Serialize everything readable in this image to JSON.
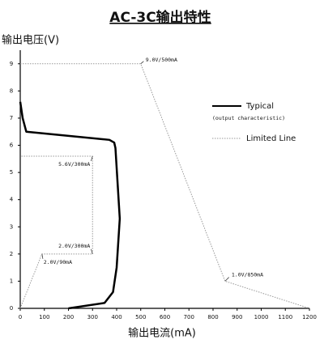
{
  "chart_data": {
    "type": "line",
    "title": "AC-3C输出特性",
    "xlabel": "输出电流(mA)",
    "ylabel": "输出电压(V)",
    "xlim": [
      0,
      1200
    ],
    "ylim": [
      0,
      9.5
    ],
    "xticks": [
      0,
      100,
      200,
      300,
      400,
      500,
      600,
      700,
      800,
      900,
      1000,
      1100,
      1200
    ],
    "yticks": [
      0,
      1,
      2,
      3,
      4,
      5,
      6,
      7,
      8,
      9
    ],
    "legend": "right",
    "series": [
      {
        "name": "Typical",
        "subtitle": "(output characteristic)",
        "color": "#000000",
        "style": "solid",
        "x": [
          0,
          10,
          25,
          370,
          390,
          395,
          413,
          400,
          385,
          350,
          200
        ],
        "values": [
          7.6,
          7.0,
          6.5,
          6.2,
          6.1,
          5.9,
          3.3,
          1.5,
          0.6,
          0.2,
          0
        ]
      },
      {
        "name": "Limited Line",
        "color": "#999999",
        "style": "dotted",
        "x": [
          0,
          90,
          300,
          300,
          0,
          null,
          0,
          500,
          850,
          1200
        ],
        "values": [
          0,
          2,
          2,
          5.6,
          5.6,
          null,
          9,
          9,
          1,
          0
        ]
      }
    ],
    "annotations": [
      {
        "text": "9.0V/500mA",
        "x": 500,
        "y": 9
      },
      {
        "text": "5.6V/300mA",
        "x": 300,
        "y": 5.6
      },
      {
        "text": "2.0V/300mA",
        "x": 300,
        "y": 2
      },
      {
        "text": "2.0V/90mA",
        "x": 90,
        "y": 2
      },
      {
        "text": "1.0V/850mA",
        "x": 850,
        "y": 1
      }
    ]
  }
}
